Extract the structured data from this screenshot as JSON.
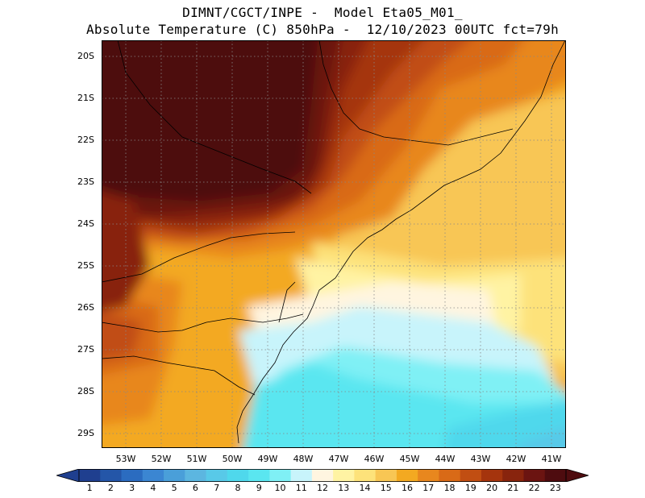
{
  "title": {
    "line1": "DIMNT/CGCT/INPE -  Model Eta05_M01_",
    "line2": "Absolute Temperature (C) 850hPa -  12/10/2023 00UTC fct=79h"
  },
  "axes": {
    "lat_labels": [
      "20S",
      "21S",
      "22S",
      "23S",
      "24S",
      "25S",
      "26S",
      "27S",
      "28S",
      "29S"
    ],
    "lon_labels": [
      "53W",
      "52W",
      "51W",
      "50W",
      "49W",
      "48W",
      "47W",
      "46W",
      "45W",
      "44W",
      "43W",
      "42W",
      "41W"
    ]
  },
  "colorbar": {
    "labels": [
      "1",
      "2",
      "3",
      "4",
      "5",
      "6",
      "7",
      "8",
      "9",
      "10",
      "11",
      "12",
      "13",
      "14",
      "15",
      "16",
      "17",
      "18",
      "19",
      "20",
      "21",
      "22",
      "23"
    ],
    "colors": [
      "#1f3f8f",
      "#2456a8",
      "#2b6cc0",
      "#3b86d2",
      "#4a9fd9",
      "#5cb6e0",
      "#58c9e8",
      "#4fd8ec",
      "#5ae6f0",
      "#7ff0f5",
      "#c8f4fb",
      "#fff5e0",
      "#fff3a3",
      "#fde27a",
      "#f8c654",
      "#f3a921",
      "#e8871e",
      "#d96a17",
      "#c14e12",
      "#a5340d",
      "#88240d",
      "#6b1411",
      "#4e0c0f"
    ]
  }
}
